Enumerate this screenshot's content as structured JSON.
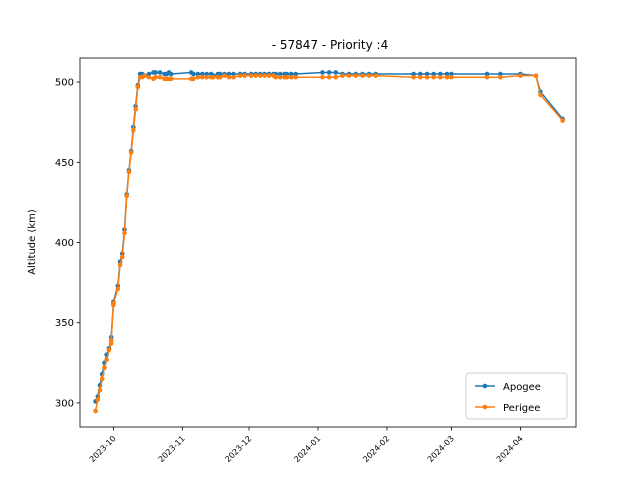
{
  "chart_data": {
    "type": "line",
    "title": "- 57847 - Priority :4",
    "xlabel": "",
    "ylabel": "Altitude (km)",
    "xlim": [
      "2023-09-16",
      "2024-04-26"
    ],
    "ylim": [
      285,
      515
    ],
    "x_ticks": [
      "2023-10",
      "2023-11",
      "2023-12",
      "2024-01",
      "2024-02",
      "2024-03",
      "2024-04"
    ],
    "x_tick_dates": [
      "2023-10-01",
      "2023-11-01",
      "2023-12-01",
      "2024-01-01",
      "2024-02-01",
      "2024-03-01",
      "2024-04-01"
    ],
    "y_ticks": [
      300,
      350,
      400,
      450,
      500
    ],
    "grid": false,
    "legend_position": "lower right",
    "series": [
      {
        "name": "Apogee",
        "color": "#1f77b4",
        "x": [
          "2023-09-23",
          "2023-09-24",
          "2023-09-25",
          "2023-09-26",
          "2023-09-27",
          "2023-09-28",
          "2023-09-29",
          "2023-09-30",
          "2023-09-30",
          "2023-10-01",
          "2023-10-01",
          "2023-10-03",
          "2023-10-04",
          "2023-10-05",
          "2023-10-06",
          "2023-10-07",
          "2023-10-08",
          "2023-10-09",
          "2023-10-10",
          "2023-10-11",
          "2023-10-12",
          "2023-10-13",
          "2023-10-14",
          "2023-10-15",
          "2023-10-17",
          "2023-10-19",
          "2023-10-20",
          "2023-10-22",
          "2023-10-24",
          "2023-10-25",
          "2023-10-26",
          "2023-10-27",
          "2023-11-05",
          "2023-11-06",
          "2023-11-08",
          "2023-11-10",
          "2023-11-12",
          "2023-11-14",
          "2023-11-15",
          "2023-11-17",
          "2023-11-18",
          "2023-11-20",
          "2023-11-22",
          "2023-11-24",
          "2023-11-27",
          "2023-11-29",
          "2023-12-02",
          "2023-12-04",
          "2023-12-06",
          "2023-12-08",
          "2023-12-10",
          "2023-12-12",
          "2023-12-13",
          "2023-12-15",
          "2023-12-17",
          "2023-12-18",
          "2023-12-20",
          "2023-12-22",
          "2024-01-03",
          "2024-01-06",
          "2024-01-09",
          "2024-01-12",
          "2024-01-15",
          "2024-01-18",
          "2024-01-21",
          "2024-01-24",
          "2024-01-27",
          "2024-02-13",
          "2024-02-16",
          "2024-02-19",
          "2024-02-22",
          "2024-02-25",
          "2024-02-28",
          "2024-03-01",
          "2024-03-17",
          "2024-03-23",
          "2024-04-01",
          "2024-04-08",
          "2024-04-10",
          "2024-04-20"
        ],
        "values": [
          301,
          304,
          311,
          318,
          325,
          330,
          334,
          339,
          341,
          362,
          363,
          373,
          388,
          393,
          408,
          430,
          445,
          457,
          472,
          485,
          498,
          505,
          505,
          504,
          505,
          506,
          506,
          506,
          505,
          505,
          506,
          505,
          506,
          505,
          505,
          505,
          505,
          505,
          504,
          505,
          505,
          505,
          505,
          505,
          505,
          505,
          505,
          505,
          505,
          505,
          505,
          505,
          505,
          505,
          505,
          505,
          505,
          505,
          506,
          506,
          506,
          505,
          505,
          505,
          505,
          505,
          505,
          505,
          505,
          505,
          505,
          505,
          505,
          505,
          505,
          505,
          505,
          504,
          494,
          477
        ]
      },
      {
        "name": "Perigee",
        "color": "#ff7f0e",
        "x": [
          "2023-09-23",
          "2023-09-24",
          "2023-09-25",
          "2023-09-26",
          "2023-09-27",
          "2023-09-28",
          "2023-09-29",
          "2023-09-30",
          "2023-09-30",
          "2023-10-01",
          "2023-10-01",
          "2023-10-03",
          "2023-10-04",
          "2023-10-05",
          "2023-10-06",
          "2023-10-07",
          "2023-10-08",
          "2023-10-09",
          "2023-10-10",
          "2023-10-11",
          "2023-10-12",
          "2023-10-13",
          "2023-10-14",
          "2023-10-15",
          "2023-10-17",
          "2023-10-19",
          "2023-10-20",
          "2023-10-22",
          "2023-10-24",
          "2023-10-25",
          "2023-10-26",
          "2023-10-27",
          "2023-11-05",
          "2023-11-06",
          "2023-11-08",
          "2023-11-10",
          "2023-11-12",
          "2023-11-14",
          "2023-11-15",
          "2023-11-17",
          "2023-11-18",
          "2023-11-20",
          "2023-11-22",
          "2023-11-24",
          "2023-11-27",
          "2023-11-29",
          "2023-12-02",
          "2023-12-04",
          "2023-12-06",
          "2023-12-08",
          "2023-12-10",
          "2023-12-12",
          "2023-12-13",
          "2023-12-15",
          "2023-12-17",
          "2023-12-18",
          "2023-12-20",
          "2023-12-22",
          "2024-01-03",
          "2024-01-06",
          "2024-01-09",
          "2024-01-12",
          "2024-01-15",
          "2024-01-18",
          "2024-01-21",
          "2024-01-24",
          "2024-01-27",
          "2024-02-13",
          "2024-02-16",
          "2024-02-19",
          "2024-02-22",
          "2024-02-25",
          "2024-02-28",
          "2024-03-01",
          "2024-03-17",
          "2024-03-23",
          "2024-04-01",
          "2024-04-08",
          "2024-04-10",
          "2024-04-20"
        ],
        "values": [
          295,
          302,
          308,
          315,
          322,
          327,
          333,
          337,
          339,
          361,
          362,
          371,
          386,
          391,
          406,
          429,
          444,
          456,
          470,
          483,
          497,
          503,
          503,
          504,
          503,
          502,
          503,
          503,
          502,
          502,
          502,
          502,
          502,
          502,
          503,
          503,
          503,
          503,
          503,
          503,
          503,
          504,
          503,
          503,
          504,
          504,
          504,
          504,
          504,
          504,
          504,
          504,
          503,
          503,
          503,
          503,
          503,
          503,
          503,
          503,
          503,
          504,
          504,
          504,
          504,
          504,
          504,
          503,
          503,
          503,
          503,
          503,
          503,
          503,
          503,
          503,
          504,
          504,
          492,
          476
        ]
      }
    ]
  }
}
